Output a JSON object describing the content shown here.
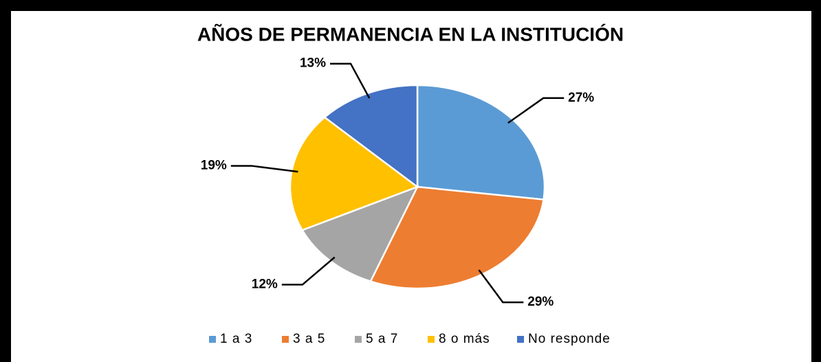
{
  "chart_data": {
    "type": "pie",
    "title": "AÑOS DE PERMANENCIA EN LA INSTITUCIÓN",
    "categories": [
      "1 a 3",
      "3 a 5",
      "5 a 7",
      "8 o más",
      "No responde"
    ],
    "values": [
      27,
      29,
      12,
      19,
      13
    ],
    "value_labels": [
      "27%",
      "29%",
      "12%",
      "19%",
      "13%"
    ],
    "colors": [
      "#5b9bd5",
      "#ed7d31",
      "#a5a5a5",
      "#ffc000",
      "#4472c4"
    ],
    "legend": "bottom"
  }
}
